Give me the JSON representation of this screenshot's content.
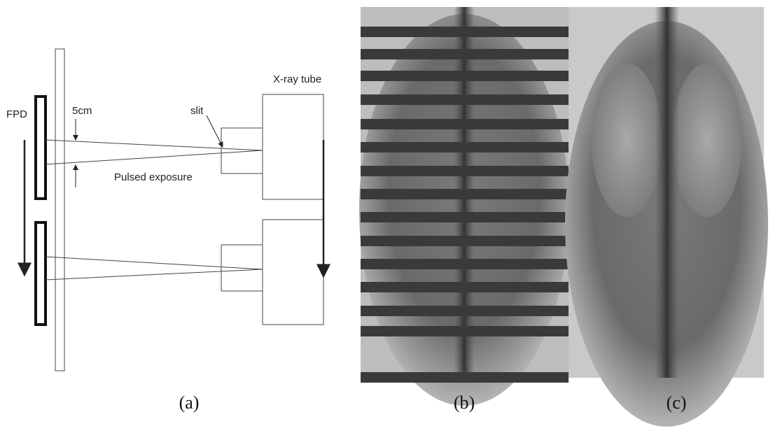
{
  "diagram": {
    "labels": {
      "xray_tube": "X-ray tube",
      "fpd": "FPD",
      "distance": "5cm",
      "slit": "slit",
      "exposure": "Pulsed exposure"
    }
  },
  "captions": [
    "(a)",
    "(b)",
    "(c)"
  ]
}
